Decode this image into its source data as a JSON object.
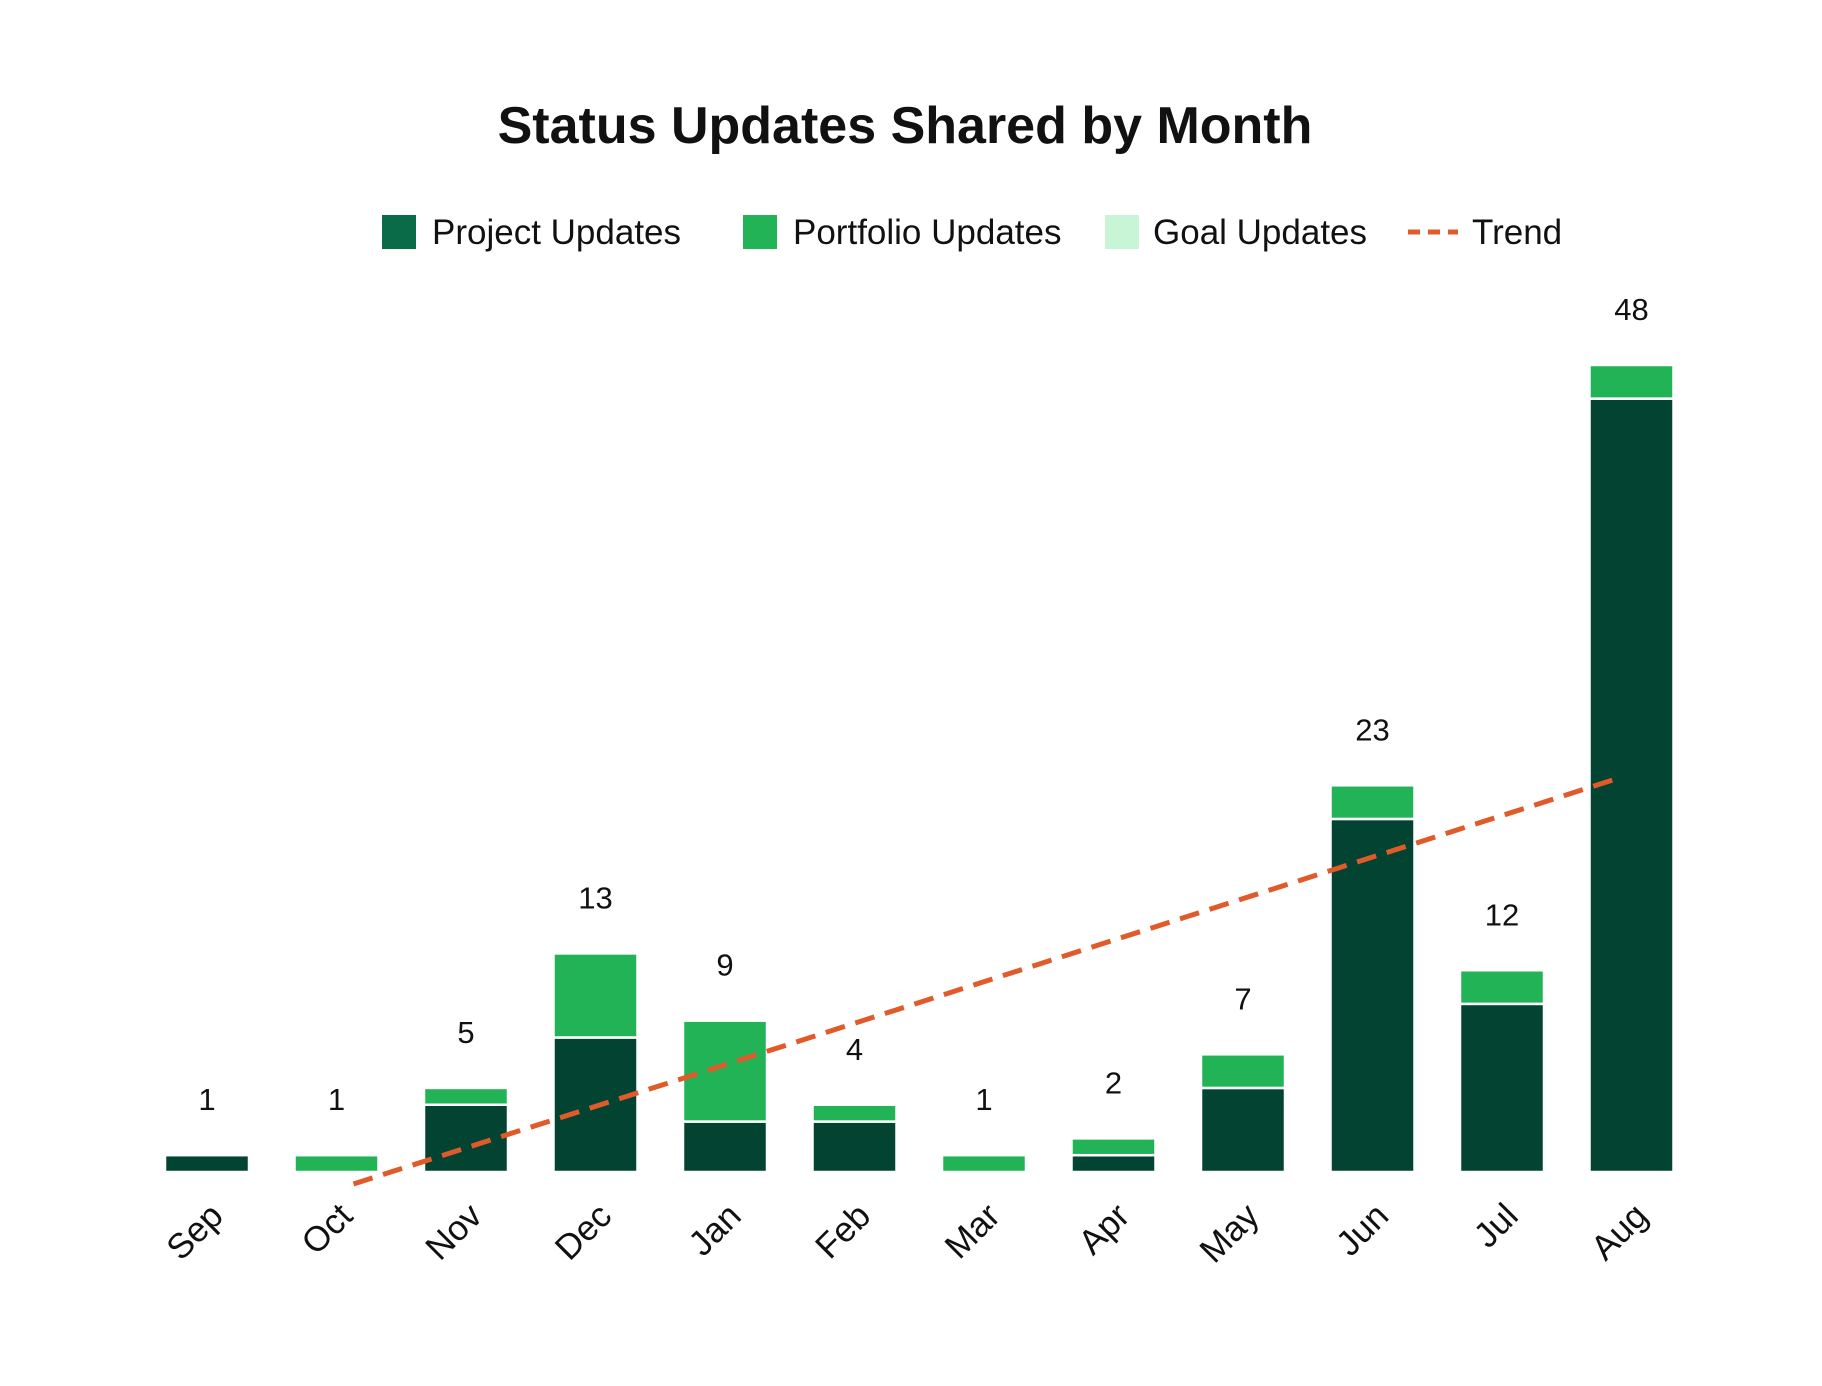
{
  "chart_data": {
    "type": "bar",
    "stacked": true,
    "title": "Status Updates Shared by Month",
    "categories": [
      "Sep",
      "Oct",
      "Nov",
      "Dec",
      "Jan",
      "Feb",
      "Mar",
      "Apr",
      "May",
      "Jun",
      "Jul",
      "Aug"
    ],
    "series": [
      {
        "name": "Project Updates",
        "color": "#024431",
        "legend_color": "#0A6B48",
        "values": [
          1,
          0,
          4,
          8,
          3,
          3,
          0,
          1,
          5,
          21,
          10,
          46
        ]
      },
      {
        "name": "Portfolio Updates",
        "color": "#22B357",
        "legend_color": "#22B357",
        "values": [
          0,
          1,
          1,
          5,
          6,
          1,
          1,
          1,
          2,
          2,
          2,
          2
        ]
      },
      {
        "name": "Goal Updates",
        "color": "#C8F5D6",
        "legend_color": "#C8F5D6",
        "values": [
          0,
          0,
          0,
          0,
          0,
          0,
          0,
          0,
          0,
          0,
          0,
          0
        ]
      }
    ],
    "totals": [
      1,
      1,
      5,
      13,
      9,
      4,
      1,
      2,
      7,
      23,
      12,
      48
    ],
    "trend": {
      "name": "Trend",
      "color": "#E05A2A",
      "style": "dashed",
      "start": {
        "category": "Oct",
        "value": 0
      },
      "end": {
        "category": "Aug",
        "value": 23.5
      }
    },
    "ylim": [
      0,
      48
    ],
    "grid": false,
    "legend_position": "top-center",
    "xlabel": "",
    "ylabel": ""
  }
}
